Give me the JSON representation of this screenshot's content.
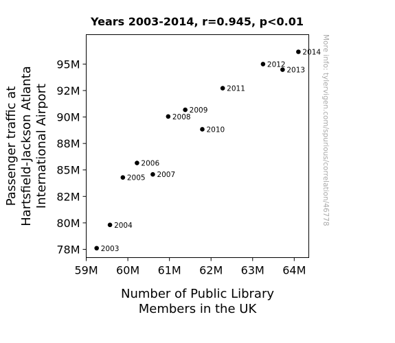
{
  "chart_data": {
    "type": "scatter",
    "title": "Years 2003-2014, r=0.945, p<0.01",
    "xlabel": [
      "Number of Public Library",
      "Members in the UK"
    ],
    "ylabel": [
      "Passenger traffic at",
      "Hartsfield-Jackson Atlanta",
      "International Airport"
    ],
    "xlim": [
      58999000,
      64350000
    ],
    "ylim": [
      76720000,
      97780000
    ],
    "x_ticks": [
      {
        "value": 59000000,
        "label": "59M"
      },
      {
        "value": 60000000,
        "label": "60M"
      },
      {
        "value": 61000000,
        "label": "61M"
      },
      {
        "value": 62000000,
        "label": "62M"
      },
      {
        "value": 63000000,
        "label": "63M"
      },
      {
        "value": 64000000,
        "label": "64M"
      }
    ],
    "y_ticks": [
      {
        "value": 77500000,
        "label": "78M"
      },
      {
        "value": 80000000,
        "label": "80M"
      },
      {
        "value": 82500000,
        "label": "82M"
      },
      {
        "value": 85000000,
        "label": "85M"
      },
      {
        "value": 87500000,
        "label": "88M"
      },
      {
        "value": 90000000,
        "label": "90M"
      },
      {
        "value": 92500000,
        "label": "92M"
      },
      {
        "value": 95000000,
        "label": "95M"
      }
    ],
    "grid": false,
    "marker_color": "#000000",
    "points": [
      {
        "label": "2003",
        "x": 59250000,
        "y": 77610000
      },
      {
        "label": "2004",
        "x": 59570000,
        "y": 79810000
      },
      {
        "label": "2005",
        "x": 59880000,
        "y": 84290000
      },
      {
        "label": "2006",
        "x": 60220000,
        "y": 85660000
      },
      {
        "label": "2007",
        "x": 60600000,
        "y": 84580000
      },
      {
        "label": "2008",
        "x": 60970000,
        "y": 90050000
      },
      {
        "label": "2009",
        "x": 61380000,
        "y": 90680000
      },
      {
        "label": "2010",
        "x": 61790000,
        "y": 88840000
      },
      {
        "label": "2011",
        "x": 62280000,
        "y": 92720000
      },
      {
        "label": "2012",
        "x": 63250000,
        "y": 95000000
      },
      {
        "label": "2013",
        "x": 63720000,
        "y": 94470000
      },
      {
        "label": "2014",
        "x": 64100000,
        "y": 96160000
      }
    ]
  },
  "side_note": "More info: tylervigen.com/spurious/correlation/46778"
}
